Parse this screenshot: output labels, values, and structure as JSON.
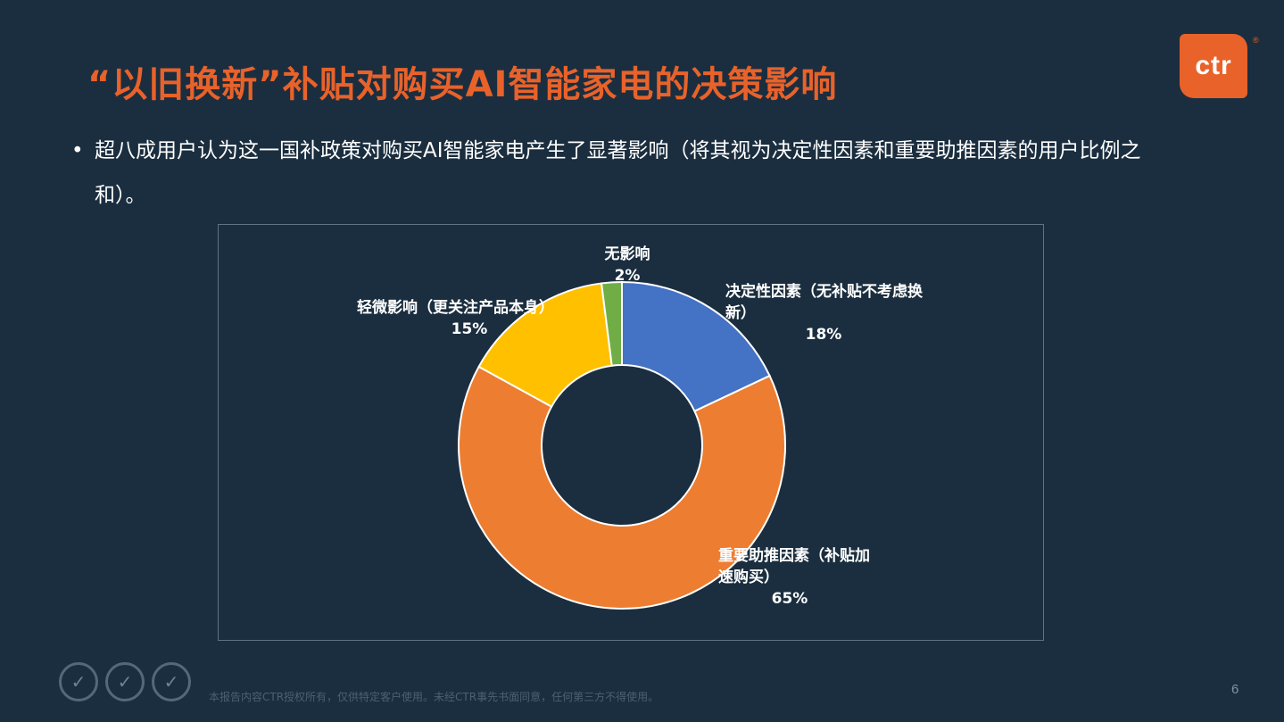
{
  "title": "“以旧换新”补贴对购买AI智能家电的决策影响",
  "logo": {
    "text": "ctr",
    "reg": "®"
  },
  "bullet": {
    "symbol": "•",
    "text": "超八成用户认为这一国补政策对购买AI智能家电产生了显著影响（将其视为决定性因素和重要助推因素的用户比例之和）。"
  },
  "chart_data": {
    "type": "donut",
    "start_angle_deg": 0,
    "direction": "clockwise",
    "slices": [
      {
        "label_lines": [
          "决定性因素（无补贴不考虑换",
          "新）"
        ],
        "value": 18,
        "display": "18%",
        "color": "#4472c4"
      },
      {
        "label_lines": [
          "重要助推因素（补贴加",
          "速购买）"
        ],
        "value": 65,
        "display": "65%",
        "color": "#ed7d31"
      },
      {
        "label_lines": [
          "轻微影响（更关注产品本身）"
        ],
        "value": 15,
        "display": "15%",
        "color": "#ffc000"
      },
      {
        "label_lines": [
          "无影响"
        ],
        "value": 2,
        "display": "2%",
        "color": "#70ad47"
      }
    ]
  },
  "footer": {
    "badges": [
      "badge-icon",
      "badge-icon",
      "badge-icon"
    ],
    "note": "本报告内容CTR授权所有，仅供特定客户使用。未经CTR事先书面同意，任何第三方不得使用。",
    "page": "6"
  }
}
